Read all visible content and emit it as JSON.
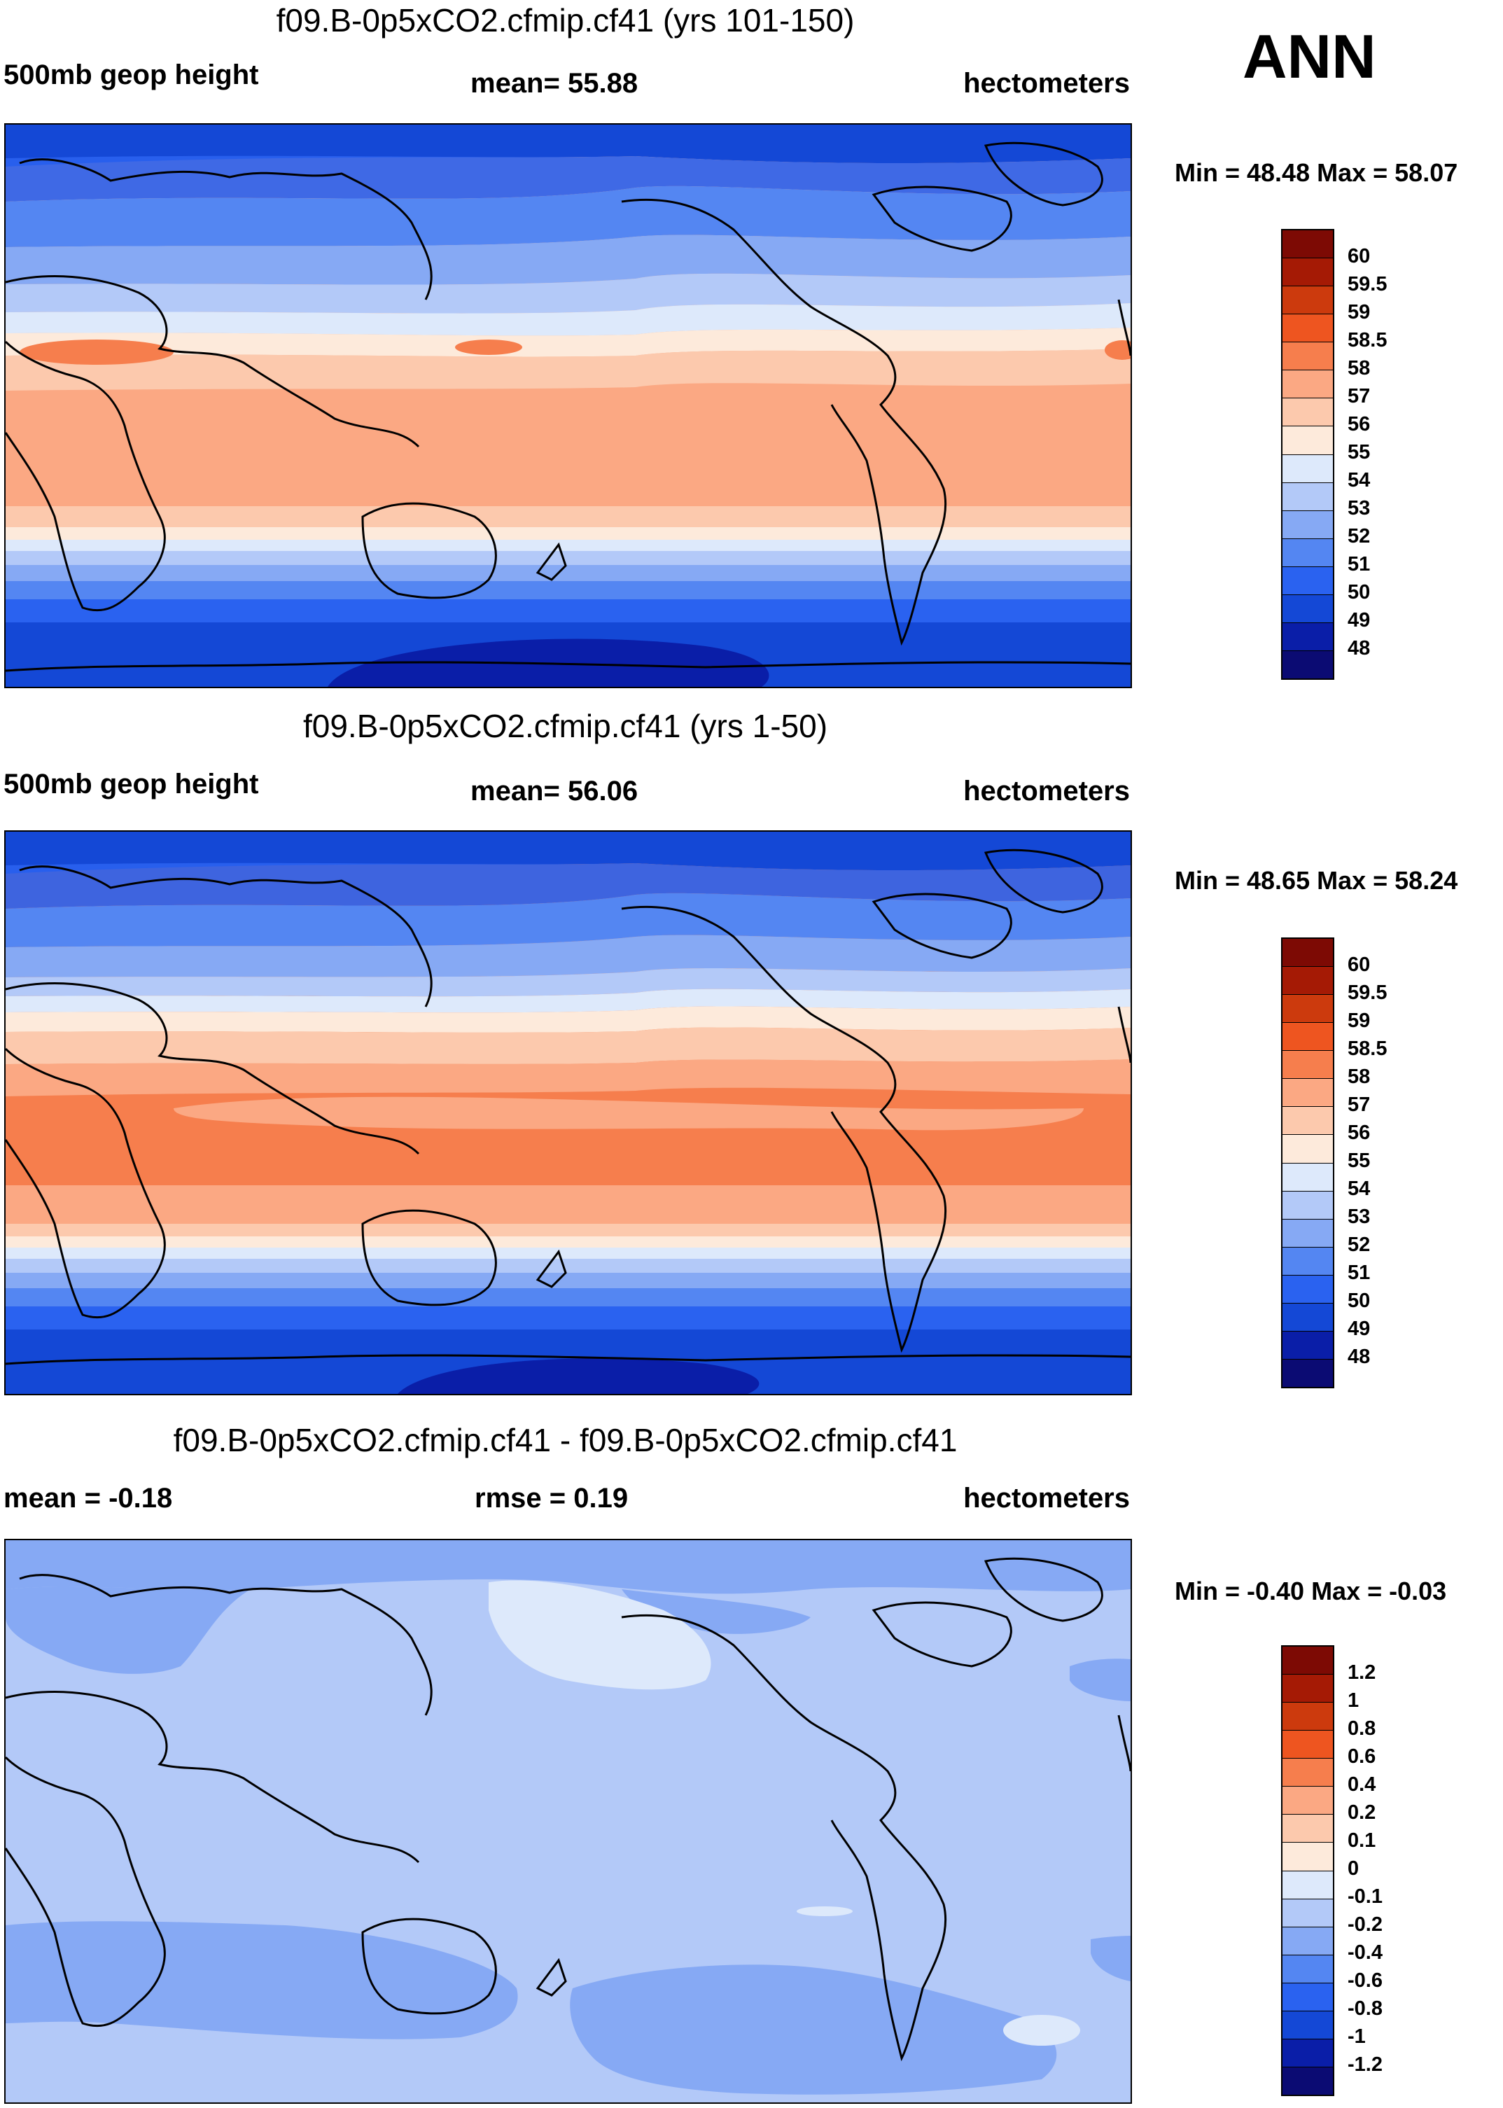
{
  "season": "ANN",
  "colors": {
    "abs_scale": [
      "#0b0b73",
      "#0a1ea8",
      "#1448d6",
      "#2a62f0",
      "#5486f2",
      "#86a9f4",
      "#b3c9f8",
      "#dde9fb",
      "#fdeadb",
      "#fcc9ad",
      "#fba883",
      "#f67e4d",
      "#ee5520",
      "#cc3a0d",
      "#a51a05",
      "#7d0a04"
    ],
    "diff_scale": [
      "#0b0b73",
      "#0a1ea8",
      "#1448d6",
      "#2a62f0",
      "#5486f2",
      "#86a9f4",
      "#b3c9f8",
      "#dde9fb",
      "#fdeadb",
      "#fcc9ad",
      "#fba883",
      "#f67e4d",
      "#ee5520",
      "#cc3a0d",
      "#a51a05",
      "#7d0a04"
    ],
    "coast": "#000000"
  },
  "panels": [
    {
      "title": "f09.B-0p5xCO2.cfmip.cf41 (yrs 101-150)",
      "left_label": "500mb geop height",
      "center_label": "mean=  55.88",
      "right_label": "hectometers",
      "minmax": "Min =  48.48 Max =  58.07",
      "colorbar_labels": [
        "60",
        "59.5",
        "59",
        "58.5",
        "58",
        "57",
        "56",
        "55",
        "54",
        "53",
        "52",
        "51",
        "50",
        "49",
        "48"
      ],
      "palette": "abs"
    },
    {
      "title": "f09.B-0p5xCO2.cfmip.cf41 (yrs 1-50)",
      "left_label": "500mb geop height",
      "center_label": "mean=  56.06",
      "right_label": "hectometers",
      "minmax": "Min =  48.65 Max =  58.24",
      "colorbar_labels": [
        "60",
        "59.5",
        "59",
        "58.5",
        "58",
        "57",
        "56",
        "55",
        "54",
        "53",
        "52",
        "51",
        "50",
        "49",
        "48"
      ],
      "palette": "abs"
    },
    {
      "title": "f09.B-0p5xCO2.cfmip.cf41 - f09.B-0p5xCO2.cfmip.cf41",
      "left_label": "mean =  -0.18",
      "center_label": "rmse =   0.19",
      "right_label": "hectometers",
      "minmax": "Min =  -0.40 Max =  -0.03",
      "colorbar_labels": [
        "1.2",
        "1",
        "0.8",
        "0.6",
        "0.4",
        "0.2",
        "0.1",
        "0",
        "-0.1",
        "-0.2",
        "-0.4",
        "-0.6",
        "-0.8",
        "-1",
        "-1.2"
      ],
      "palette": "diff"
    }
  ]
}
